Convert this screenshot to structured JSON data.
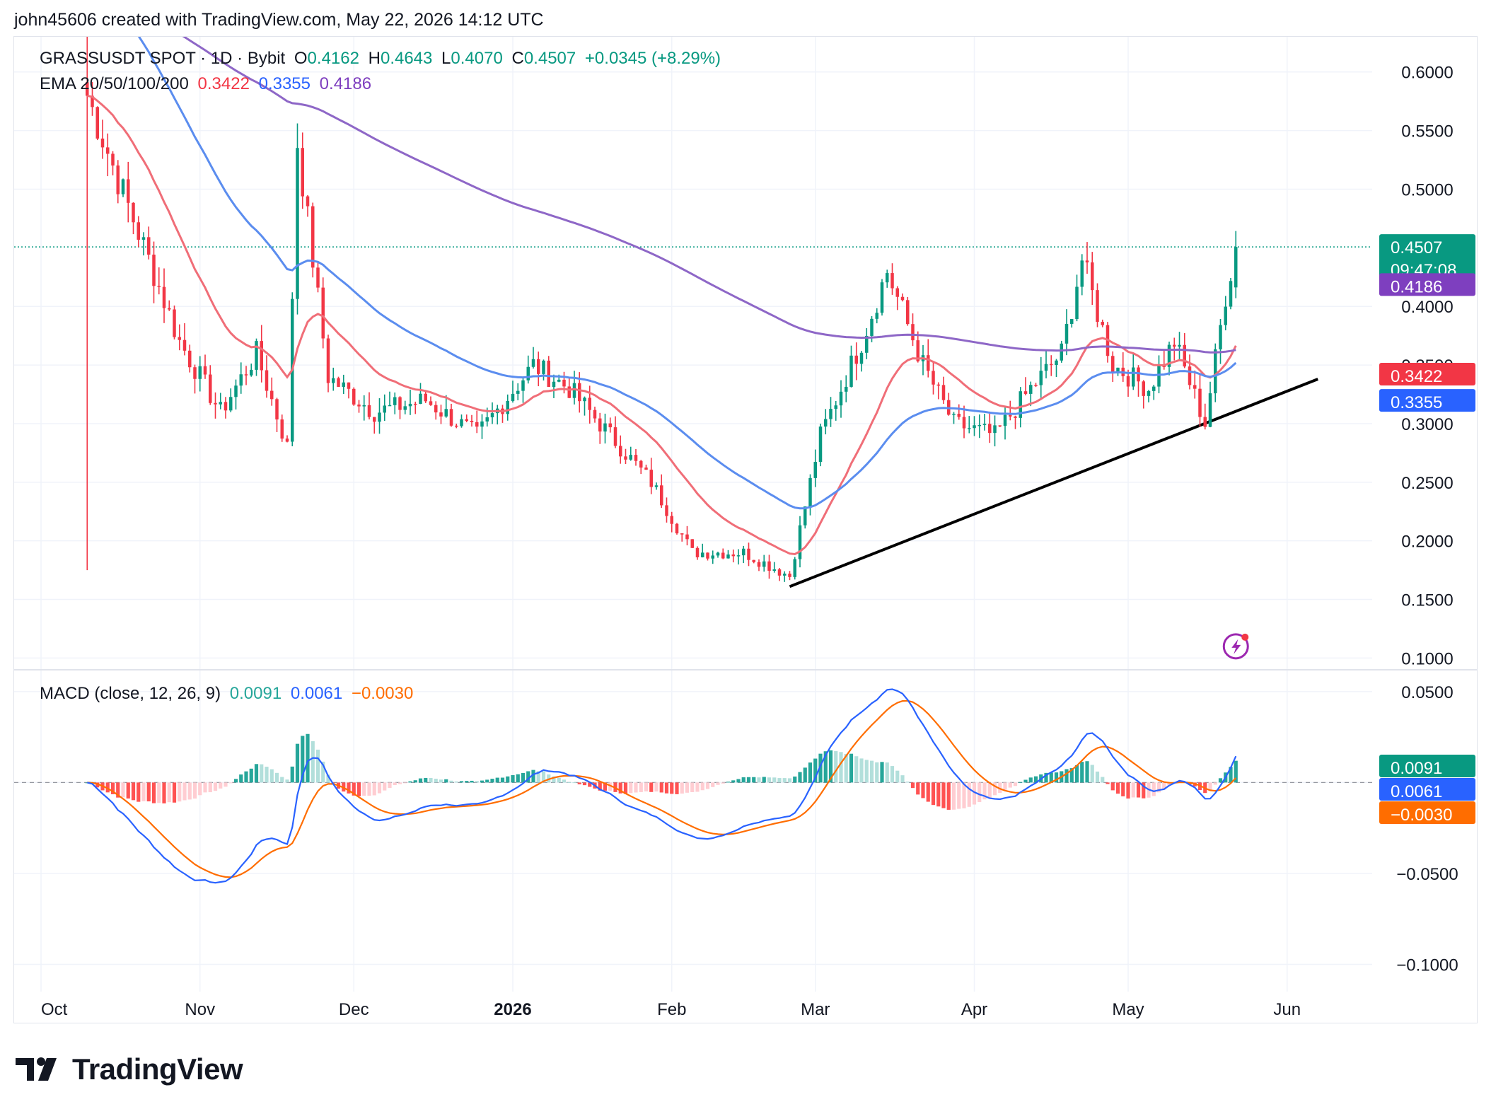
{
  "header": {
    "caption": "john45606 created with TradingView.com, May 22, 2026 14:12 UTC"
  },
  "legend_main": {
    "symbol": "GRASSUSDT SPOT · 1D · Bybit",
    "open_label": "O",
    "open": "0.4162",
    "high_label": "H",
    "high": "0.4643",
    "low_label": "L",
    "low": "0.4070",
    "close_label": "C",
    "close": "0.4507",
    "change": "+0.0345 (+8.29%)",
    "up_color": "#089981"
  },
  "legend_ema": {
    "label": "EMA 20/50/100/200",
    "v1": "0.3422",
    "v2": "0.3355",
    "v3": "0.4186"
  },
  "legend_macd": {
    "label": "MACD (close, 12, 26, 9)",
    "hist": "0.0091",
    "macd": "0.0061",
    "signal": "−0.0030"
  },
  "footer": {
    "brand": "TradingView"
  },
  "colors": {
    "up": "#089981",
    "down": "#f23645",
    "ema20": "#f06e78",
    "ema50": "#5b8def",
    "ema200": "#8e67c7",
    "macd": "#2962ff",
    "signal": "#ff6d00",
    "hist_up_strong": "#26a69a",
    "hist_up_weak": "#b2dfdb",
    "hist_down_strong": "#ff5252",
    "hist_down_weak": "#ffcdd2",
    "badge_close": "#089981",
    "badge_ema20": "#f23645",
    "badge_ema50": "#2962ff",
    "badge_ema200": "#7e3fbf",
    "badge_signal": "#ff6d00"
  },
  "chart_data": [
    {
      "type": "candlestick",
      "title": "GRASSUSDT SPOT · 1D · Bybit",
      "x_labels": [
        "Oct",
        "Nov",
        "Dec",
        "2026",
        "Feb",
        "Mar",
        "Apr",
        "May",
        "Jun"
      ],
      "ylim": [
        0.09,
        0.63
      ],
      "y_ticks": [
        "0.6000",
        "0.5500",
        "0.5000",
        "0.4000",
        "0.3500",
        "0.3000",
        "0.2500",
        "0.2000",
        "0.1500",
        "0.1000"
      ],
      "last_price": "0.4507",
      "countdown": "09:47:08",
      "ema_badges": [
        "0.4186",
        "0.3422",
        "0.3355"
      ],
      "ohlc_last": {
        "open": 0.4162,
        "high": 0.4643,
        "low": 0.407,
        "close": 0.4507
      },
      "trendline": [
        {
          "date": "2026-02-24",
          "price": 0.161
        },
        {
          "date": "2026-06-07",
          "price": 0.338
        }
      ],
      "series_close_approx": [
        {
          "date": "2025-10-10",
          "close": 0.58
        },
        {
          "date": "2025-10-15",
          "close": 0.52
        },
        {
          "date": "2025-10-22",
          "close": 0.44
        },
        {
          "date": "2025-10-28",
          "close": 0.37
        },
        {
          "date": "2025-11-05",
          "close": 0.31
        },
        {
          "date": "2025-11-12",
          "close": 0.36
        },
        {
          "date": "2025-11-18",
          "close": 0.28
        },
        {
          "date": "2025-11-20",
          "close": 0.54
        },
        {
          "date": "2025-11-26",
          "close": 0.34
        },
        {
          "date": "2025-12-05",
          "close": 0.31
        },
        {
          "date": "2025-12-15",
          "close": 0.32
        },
        {
          "date": "2025-12-25",
          "close": 0.29
        },
        {
          "date": "2026-01-05",
          "close": 0.35
        },
        {
          "date": "2026-01-12",
          "close": 0.33
        },
        {
          "date": "2026-01-20",
          "close": 0.29
        },
        {
          "date": "2026-01-28",
          "close": 0.25
        },
        {
          "date": "2026-02-05",
          "close": 0.19
        },
        {
          "date": "2026-02-15",
          "close": 0.19
        },
        {
          "date": "2026-02-24",
          "close": 0.17
        },
        {
          "date": "2026-03-02",
          "close": 0.29
        },
        {
          "date": "2026-03-10",
          "close": 0.37
        },
        {
          "date": "2026-03-15",
          "close": 0.43
        },
        {
          "date": "2026-03-22",
          "close": 0.35
        },
        {
          "date": "2026-03-28",
          "close": 0.3
        },
        {
          "date": "2026-04-05",
          "close": 0.29
        },
        {
          "date": "2026-04-12",
          "close": 0.33
        },
        {
          "date": "2026-04-18",
          "close": 0.36
        },
        {
          "date": "2026-04-22",
          "close": 0.44
        },
        {
          "date": "2026-04-28",
          "close": 0.35
        },
        {
          "date": "2026-05-05",
          "close": 0.33
        },
        {
          "date": "2026-05-10",
          "close": 0.37
        },
        {
          "date": "2026-05-16",
          "close": 0.3
        },
        {
          "date": "2026-05-20",
          "close": 0.41
        },
        {
          "date": "2026-05-22",
          "close": 0.4507
        }
      ]
    },
    {
      "type": "line",
      "title": "MACD (close, 12, 26, 9)",
      "ylim": [
        -0.115,
        0.062
      ],
      "y_ticks": [
        "0.0500",
        "−0.0500",
        "−0.1000"
      ],
      "badges": [
        "0.0091",
        "0.0061",
        "−0.0030"
      ]
    }
  ]
}
